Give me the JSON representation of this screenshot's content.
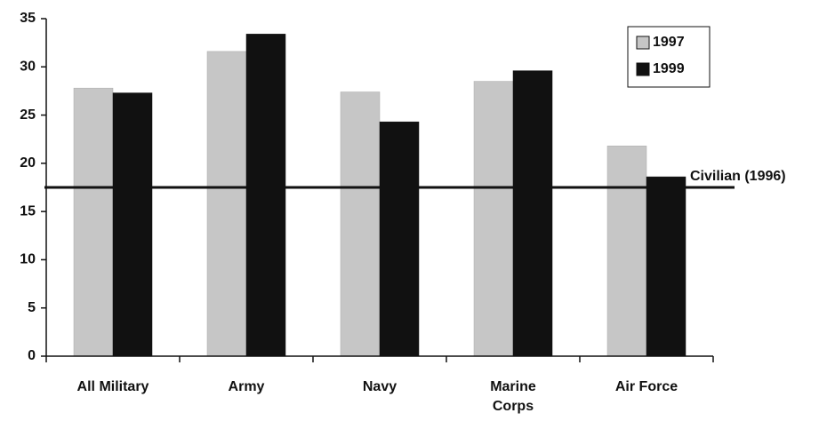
{
  "chart_data": {
    "type": "bar",
    "categories": [
      "All Military",
      "Army",
      "Navy",
      "Marine\nCorps",
      "Air Force"
    ],
    "series": [
      {
        "name": "1997",
        "color": "#c6c6c6",
        "values": [
          27.8,
          31.6,
          27.4,
          28.5,
          21.8
        ]
      },
      {
        "name": "1999",
        "color": "#111111",
        "values": [
          27.3,
          33.4,
          24.3,
          29.6,
          18.6
        ]
      }
    ],
    "reference_line": {
      "label": "Civilian (1996)",
      "value": 17.5
    },
    "ylim": [
      0,
      35
    ],
    "yticks": [
      0,
      5,
      10,
      15,
      20,
      25,
      30,
      35
    ],
    "legend": "top-right"
  }
}
